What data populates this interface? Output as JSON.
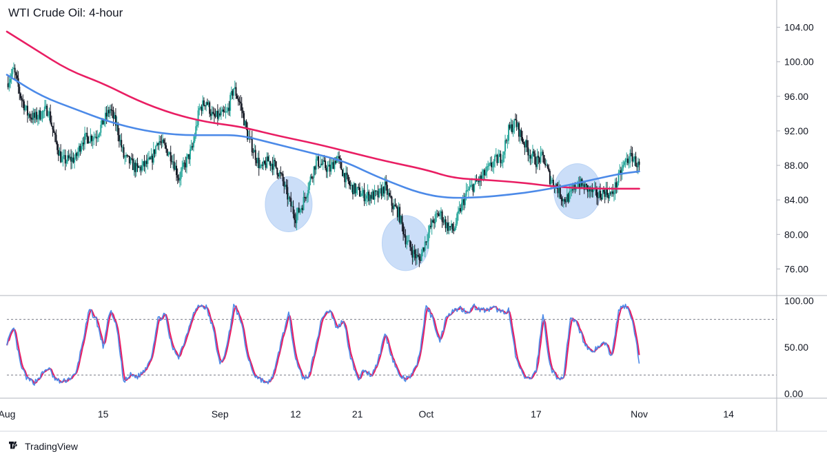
{
  "chart_data": {
    "type": "candlestick",
    "title": "WTI Crude Oil: 4-hour",
    "price_panel": {
      "ylim": [
        73.0,
        107.0
      ],
      "y_ticks": [
        "104.00",
        "100.00",
        "96.00",
        "92.00",
        "88.00",
        "84.00",
        "80.00",
        "76.00"
      ],
      "y_tick_values": [
        104,
        100,
        96,
        92,
        88,
        84,
        80,
        76
      ],
      "x_range_days": [
        "2022-08-01",
        "2022-11-21"
      ],
      "anchors": [
        [
          "2022-08-01",
          97.5
        ],
        [
          "2022-08-02",
          99.0
        ],
        [
          "2022-08-03",
          96.0
        ],
        [
          "2022-08-04",
          94.0
        ],
        [
          "2022-08-05",
          93.5
        ],
        [
          "2022-08-07",
          94.5
        ],
        [
          "2022-08-08",
          91.0
        ],
        [
          "2022-08-09",
          88.5
        ],
        [
          "2022-08-11",
          88.8
        ],
        [
          "2022-08-12",
          91.0
        ],
        [
          "2022-08-14",
          91.5
        ],
        [
          "2022-08-16",
          94.5
        ],
        [
          "2022-08-17",
          92.5
        ],
        [
          "2022-08-18",
          89.0
        ],
        [
          "2022-08-20",
          87.5
        ],
        [
          "2022-08-22",
          88.5
        ],
        [
          "2022-08-23",
          91.0
        ],
        [
          "2022-08-25",
          89.0
        ],
        [
          "2022-08-26",
          86.5
        ],
        [
          "2022-08-28",
          90.0
        ],
        [
          "2022-08-29",
          94.5
        ],
        [
          "2022-08-30",
          95.5
        ],
        [
          "2022-08-31",
          93.5
        ],
        [
          "2022-09-02",
          94.0
        ],
        [
          "2022-09-03",
          97.0
        ],
        [
          "2022-09-04",
          95.0
        ],
        [
          "2022-09-05",
          91.5
        ],
        [
          "2022-09-06",
          89.5
        ],
        [
          "2022-09-07",
          87.5
        ],
        [
          "2022-09-08",
          88.5
        ],
        [
          "2022-09-09",
          88.0
        ],
        [
          "2022-09-10",
          86.5
        ],
        [
          "2022-09-11",
          84.0
        ],
        [
          "2022-09-12",
          82.0
        ],
        [
          "2022-09-13",
          83.5
        ],
        [
          "2022-09-14",
          86.0
        ],
        [
          "2022-09-15",
          88.5
        ],
        [
          "2022-09-17",
          87.5
        ],
        [
          "2022-09-18",
          89.0
        ],
        [
          "2022-09-19",
          87.0
        ],
        [
          "2022-09-20",
          85.5
        ],
        [
          "2022-09-22",
          84.5
        ],
        [
          "2022-09-24",
          84.5
        ],
        [
          "2022-09-25",
          85.5
        ],
        [
          "2022-09-26",
          83.5
        ],
        [
          "2022-09-27",
          82.5
        ],
        [
          "2022-09-28",
          79.5
        ],
        [
          "2022-09-29",
          78.0
        ],
        [
          "2022-09-30",
          77.0
        ],
        [
          "2022-10-01",
          79.5
        ],
        [
          "2022-10-02",
          81.5
        ],
        [
          "2022-10-03",
          82.5
        ],
        [
          "2022-10-04",
          81.0
        ],
        [
          "2022-10-05",
          80.5
        ],
        [
          "2022-10-06",
          83.0
        ],
        [
          "2022-10-07",
          85.0
        ],
        [
          "2022-10-09",
          86.5
        ],
        [
          "2022-10-10",
          87.5
        ],
        [
          "2022-10-11",
          88.5
        ],
        [
          "2022-10-12",
          89.0
        ],
        [
          "2022-10-13",
          92.0
        ],
        [
          "2022-10-14",
          93.0
        ],
        [
          "2022-10-15",
          91.0
        ],
        [
          "2022-10-16",
          89.5
        ],
        [
          "2022-10-17",
          88.5
        ],
        [
          "2022-10-18",
          89.0
        ],
        [
          "2022-10-19",
          86.5
        ],
        [
          "2022-10-20",
          85.5
        ],
        [
          "2022-10-21",
          84.0
        ],
        [
          "2022-10-22",
          84.5
        ],
        [
          "2022-10-23",
          86.0
        ],
        [
          "2022-10-24",
          85.5
        ],
        [
          "2022-10-25",
          85.0
        ],
        [
          "2022-10-26",
          84.5
        ],
        [
          "2022-10-27",
          85.0
        ],
        [
          "2022-10-28",
          84.5
        ],
        [
          "2022-10-29",
          86.5
        ],
        [
          "2022-10-30",
          88.5
        ],
        [
          "2022-10-31",
          89.0
        ],
        [
          "2022-11-01",
          87.8
        ]
      ],
      "ma_slow": {
        "color": "#e91e63",
        "points": [
          [
            "2022-08-01",
            103.5
          ],
          [
            "2022-08-05",
            101.5
          ],
          [
            "2022-08-10",
            99.0
          ],
          [
            "2022-08-15",
            97.5
          ],
          [
            "2022-08-20",
            95.5
          ],
          [
            "2022-08-25",
            94.0
          ],
          [
            "2022-08-30",
            93.0
          ],
          [
            "2022-09-04",
            92.5
          ],
          [
            "2022-09-09",
            91.5
          ],
          [
            "2022-09-15",
            90.5
          ],
          [
            "2022-09-20",
            89.5
          ],
          [
            "2022-09-25",
            88.5
          ],
          [
            "2022-10-01",
            87.5
          ],
          [
            "2022-10-05",
            86.5
          ],
          [
            "2022-10-10",
            86.3
          ],
          [
            "2022-10-15",
            86.0
          ],
          [
            "2022-10-20",
            85.5
          ],
          [
            "2022-10-25",
            85.3
          ],
          [
            "2022-11-01",
            85.3
          ]
        ]
      },
      "ma_fast": {
        "color": "#4c8ae8",
        "points": [
          [
            "2022-08-01",
            98.5
          ],
          [
            "2022-08-06",
            96.0
          ],
          [
            "2022-08-11",
            94.5
          ],
          [
            "2022-08-16",
            93.0
          ],
          [
            "2022-08-21",
            92.0
          ],
          [
            "2022-08-26",
            91.5
          ],
          [
            "2022-08-31",
            91.5
          ],
          [
            "2022-09-04",
            91.5
          ],
          [
            "2022-09-09",
            90.5
          ],
          [
            "2022-09-14",
            89.5
          ],
          [
            "2022-09-19",
            88.5
          ],
          [
            "2022-09-23",
            87.0
          ],
          [
            "2022-09-26",
            86.0
          ],
          [
            "2022-09-30",
            84.8
          ],
          [
            "2022-10-04",
            84.2
          ],
          [
            "2022-10-09",
            84.3
          ],
          [
            "2022-10-13",
            84.6
          ],
          [
            "2022-10-17",
            85.0
          ],
          [
            "2022-10-21",
            85.6
          ],
          [
            "2022-10-25",
            86.3
          ],
          [
            "2022-10-29",
            87.0
          ],
          [
            "2022-11-01",
            87.3
          ]
        ]
      },
      "highlights": [
        {
          "center": [
            "2022-09-11",
            83.5
          ],
          "color": "#b9d3f5"
        },
        {
          "center": [
            "2022-09-28",
            79.0
          ],
          "color": "#b9d3f5"
        },
        {
          "center": [
            "2022-10-23",
            85.0
          ],
          "color": "#b9d3f5"
        }
      ]
    },
    "oscillator_panel": {
      "ylim": [
        -5,
        105
      ],
      "y_ticks": [
        "100.00",
        "50.00",
        "0.00"
      ],
      "y_tick_values": [
        100,
        50,
        0
      ],
      "levels": [
        80,
        20
      ],
      "k_color": "#4c8ae8",
      "d_color": "#e91e63",
      "k_anchors": [
        [
          "2022-08-01",
          55
        ],
        [
          "2022-08-02",
          70
        ],
        [
          "2022-08-03",
          30
        ],
        [
          "2022-08-04",
          15
        ],
        [
          "2022-08-05",
          12
        ],
        [
          "2022-08-06",
          20
        ],
        [
          "2022-08-07",
          28
        ],
        [
          "2022-08-08",
          15
        ],
        [
          "2022-08-09",
          12
        ],
        [
          "2022-08-11",
          20
        ],
        [
          "2022-08-12",
          55
        ],
        [
          "2022-08-13",
          90
        ],
        [
          "2022-08-14",
          80
        ],
        [
          "2022-08-15",
          50
        ],
        [
          "2022-08-16",
          90
        ],
        [
          "2022-08-17",
          70
        ],
        [
          "2022-08-18",
          12
        ],
        [
          "2022-08-19",
          20
        ],
        [
          "2022-08-20",
          18
        ],
        [
          "2022-08-21",
          25
        ],
        [
          "2022-08-22",
          40
        ],
        [
          "2022-08-23",
          80
        ],
        [
          "2022-08-24",
          85
        ],
        [
          "2022-08-25",
          50
        ],
        [
          "2022-08-26",
          40
        ],
        [
          "2022-08-27",
          60
        ],
        [
          "2022-08-28",
          85
        ],
        [
          "2022-08-29",
          95
        ],
        [
          "2022-08-30",
          93
        ],
        [
          "2022-08-31",
          70
        ],
        [
          "2022-09-01",
          30
        ],
        [
          "2022-09-02",
          50
        ],
        [
          "2022-09-03",
          95
        ],
        [
          "2022-09-04",
          80
        ],
        [
          "2022-09-05",
          40
        ],
        [
          "2022-09-06",
          20
        ],
        [
          "2022-09-07",
          15
        ],
        [
          "2022-09-08",
          10
        ],
        [
          "2022-09-09",
          25
        ],
        [
          "2022-09-10",
          60
        ],
        [
          "2022-09-11",
          85
        ],
        [
          "2022-09-12",
          40
        ],
        [
          "2022-09-13",
          15
        ],
        [
          "2022-09-14",
          20
        ],
        [
          "2022-09-15",
          55
        ],
        [
          "2022-09-16",
          85
        ],
        [
          "2022-09-17",
          90
        ],
        [
          "2022-09-18",
          70
        ],
        [
          "2022-09-19",
          80
        ],
        [
          "2022-09-20",
          40
        ],
        [
          "2022-09-21",
          15
        ],
        [
          "2022-09-22",
          25
        ],
        [
          "2022-09-23",
          20
        ],
        [
          "2022-09-24",
          35
        ],
        [
          "2022-09-25",
          65
        ],
        [
          "2022-09-26",
          40
        ],
        [
          "2022-09-27",
          20
        ],
        [
          "2022-09-28",
          15
        ],
        [
          "2022-09-29",
          20
        ],
        [
          "2022-09-30",
          40
        ],
        [
          "2022-10-01",
          95
        ],
        [
          "2022-10-02",
          80
        ],
        [
          "2022-10-03",
          55
        ],
        [
          "2022-10-04",
          85
        ],
        [
          "2022-10-05",
          90
        ],
        [
          "2022-10-06",
          92
        ],
        [
          "2022-10-07",
          88
        ],
        [
          "2022-10-08",
          94
        ],
        [
          "2022-10-09",
          90
        ],
        [
          "2022-10-10",
          90
        ],
        [
          "2022-10-11",
          92
        ],
        [
          "2022-10-12",
          88
        ],
        [
          "2022-10-13",
          90
        ],
        [
          "2022-10-14",
          40
        ],
        [
          "2022-10-15",
          20
        ],
        [
          "2022-10-16",
          15
        ],
        [
          "2022-10-17",
          25
        ],
        [
          "2022-10-18",
          85
        ],
        [
          "2022-10-19",
          30
        ],
        [
          "2022-10-20",
          15
        ],
        [
          "2022-10-21",
          20
        ],
        [
          "2022-10-22",
          80
        ],
        [
          "2022-10-23",
          75
        ],
        [
          "2022-10-24",
          55
        ],
        [
          "2022-10-25",
          45
        ],
        [
          "2022-10-26",
          50
        ],
        [
          "2022-10-27",
          55
        ],
        [
          "2022-10-28",
          40
        ],
        [
          "2022-10-29",
          90
        ],
        [
          "2022-10-30",
          95
        ],
        [
          "2022-10-31",
          80
        ],
        [
          "2022-11-01",
          35
        ]
      ]
    },
    "x_ticks": [
      {
        "label": "Aug",
        "date": "2022-08-01"
      },
      {
        "label": "15",
        "date": "2022-08-15"
      },
      {
        "label": "Sep",
        "date": "2022-09-01"
      },
      {
        "label": "12",
        "date": "2022-09-12"
      },
      {
        "label": "21",
        "date": "2022-09-21"
      },
      {
        "label": "Oct",
        "date": "2022-10-01"
      },
      {
        "label": "17",
        "date": "2022-10-17"
      },
      {
        "label": "Nov",
        "date": "2022-11-01"
      },
      {
        "label": "14",
        "date": "2022-11-14"
      }
    ],
    "colors": {
      "up": "#26a69a",
      "down": "#131722",
      "grid": "#dcdfe6"
    }
  },
  "branding": {
    "name": "TradingView"
  }
}
